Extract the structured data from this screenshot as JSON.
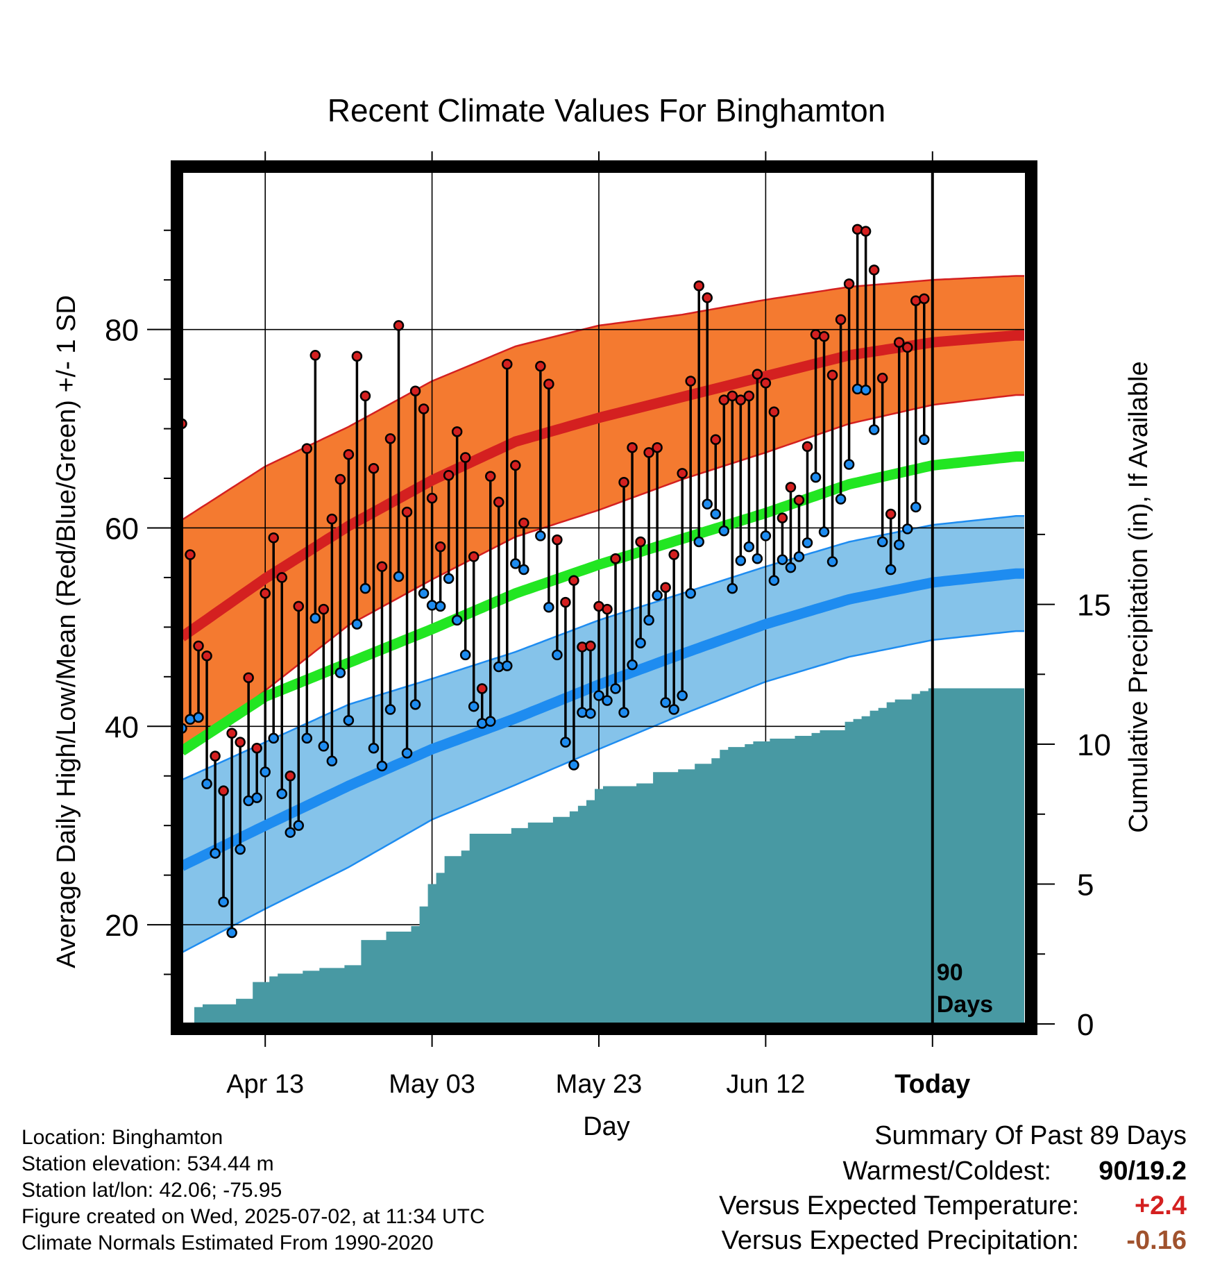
{
  "chart_data": {
    "type": "line",
    "title": "Recent Climate Values For Binghamton",
    "xlabel": "Day",
    "ylabel": "Average Daily High/Low/Mean (Red/Blue/Green) +/- 1 SD",
    "y2label": "Cumulative Precipitation (in), If Available",
    "ylim": [
      10,
      96
    ],
    "y2lim": [
      0,
      30.5
    ],
    "xlim": [
      1,
      102
    ],
    "yticks": [
      20,
      40,
      60,
      80
    ],
    "y2ticks": [
      0,
      5,
      10,
      15
    ],
    "xticks": [
      {
        "day": 11,
        "label": "Apr 13"
      },
      {
        "day": 31,
        "label": "May 03"
      },
      {
        "day": 51,
        "label": "May 23"
      },
      {
        "day": 71,
        "label": "Jun 12"
      },
      {
        "day": 91,
        "label": "Today"
      }
    ],
    "today_marker": {
      "day": 91,
      "label_lines": [
        "90",
        "Days"
      ]
    },
    "grid": true,
    "colors": {
      "high": "#d42020",
      "high_band": "#f47a30",
      "low": "#1e8cf0",
      "low_band": "#85c3ea",
      "mean": "#22e622",
      "precip": "#4899a3"
    },
    "normals": {
      "days": [
        1,
        11,
        21,
        31,
        41,
        51,
        61,
        71,
        81,
        91,
        101
      ],
      "high_mean": [
        49.0,
        54.9,
        60.2,
        64.8,
        68.7,
        71.1,
        73.2,
        75.3,
        77.4,
        78.7,
        79.4
      ],
      "high_sd": [
        11.8,
        11.3,
        10.0,
        10.0,
        9.6,
        9.3,
        8.3,
        7.7,
        6.9,
        6.3,
        6.0
      ],
      "mean_mean": [
        37.5,
        43.0,
        46.4,
        49.8,
        53.4,
        56.3,
        58.9,
        61.5,
        64.4,
        66.3,
        67.2
      ],
      "low_mean": [
        25.9,
        30.0,
        34.0,
        37.7,
        40.8,
        44.2,
        47.3,
        50.3,
        52.8,
        54.5,
        55.4
      ],
      "low_sd": [
        8.7,
        8.4,
        8.2,
        7.1,
        6.7,
        6.5,
        6.1,
        5.8,
        5.8,
        5.8,
        5.8
      ]
    },
    "series": [
      {
        "name": "High",
        "values": [
          70.5,
          57.3,
          48.1,
          47.1,
          37.0,
          33.5,
          39.3,
          38.4,
          44.9,
          37.8,
          53.4,
          59.0,
          55.0,
          35.0,
          52.1,
          68.0,
          77.4,
          51.8,
          60.9,
          64.9,
          67.4,
          77.3,
          73.3,
          66.0,
          56.1,
          69.0,
          80.4,
          61.6,
          73.8,
          72.0,
          63.0,
          58.1,
          65.3,
          69.7,
          67.1,
          57.1,
          43.8,
          65.2,
          62.6,
          76.5,
          66.3,
          60.5,
          null,
          76.3,
          74.5,
          58.8,
          52.5,
          54.7,
          48.0,
          48.1,
          52.1,
          51.8,
          56.9,
          64.6,
          68.1,
          58.6,
          67.6,
          68.1,
          54.0,
          57.3,
          65.5,
          74.8,
          84.4,
          83.2,
          68.9,
          72.9,
          73.3,
          72.9,
          73.3,
          75.5,
          74.6,
          71.7,
          61.0,
          64.1,
          62.8,
          68.2,
          79.5,
          79.3,
          75.4,
          81.0,
          84.6,
          90.1,
          89.9,
          86.0,
          75.1,
          61.4,
          78.7,
          78.2,
          82.9,
          83.1
        ]
      },
      {
        "name": "Low",
        "values": [
          39.8,
          40.7,
          40.9,
          34.2,
          27.2,
          22.3,
          19.2,
          27.6,
          32.5,
          32.8,
          35.4,
          38.8,
          33.2,
          29.3,
          30.0,
          38.8,
          50.9,
          38.0,
          36.5,
          45.4,
          40.6,
          50.3,
          53.9,
          37.8,
          36.0,
          41.7,
          55.1,
          37.3,
          42.2,
          53.4,
          52.2,
          52.1,
          54.9,
          50.7,
          47.2,
          42.0,
          40.3,
          40.5,
          46.0,
          46.1,
          56.4,
          55.8,
          null,
          59.2,
          52.0,
          47.2,
          38.4,
          36.1,
          41.4,
          41.3,
          43.1,
          42.6,
          43.8,
          41.4,
          46.2,
          48.4,
          50.7,
          53.2,
          42.4,
          41.7,
          43.1,
          53.4,
          58.6,
          62.4,
          61.4,
          59.7,
          53.9,
          56.7,
          58.1,
          56.9,
          59.2,
          54.7,
          56.8,
          56.0,
          57.1,
          58.5,
          65.1,
          59.6,
          56.6,
          62.9,
          66.4,
          74.0,
          73.9,
          69.9,
          58.6,
          55.8,
          58.3,
          59.9,
          62.1,
          68.9
        ]
      },
      {
        "name": "Cumulative Precipitation",
        "x": [
          1,
          2,
          3,
          4,
          5,
          6,
          7,
          8,
          9,
          10,
          11,
          12,
          13,
          14,
          15,
          16,
          17,
          18,
          19,
          20,
          21,
          22,
          23,
          24,
          25,
          26,
          27,
          28,
          29,
          30,
          31,
          32,
          33,
          34,
          35,
          36,
          37,
          38,
          39,
          40,
          41,
          42,
          43,
          44,
          45,
          46,
          47,
          48,
          49,
          50,
          51,
          52,
          53,
          54,
          55,
          56,
          57,
          58,
          59,
          60,
          61,
          62,
          63,
          64,
          65,
          66,
          67,
          68,
          69,
          70,
          71,
          72,
          73,
          74,
          75,
          76,
          77,
          78,
          79,
          80,
          81,
          82,
          83,
          84,
          85,
          86,
          87,
          88,
          89,
          90,
          91,
          92,
          93,
          94,
          95,
          96,
          97,
          98,
          99,
          100,
          101,
          102
        ],
        "values": [
          0.0,
          0.0,
          0.6,
          0.7,
          0.7,
          0.7,
          0.7,
          0.9,
          0.9,
          1.5,
          1.5,
          1.7,
          1.8,
          1.8,
          1.8,
          1.9,
          1.9,
          2.0,
          2.0,
          2.0,
          2.1,
          2.1,
          3.0,
          3.0,
          3.0,
          3.3,
          3.3,
          3.3,
          3.5,
          4.2,
          5.0,
          5.4,
          6.0,
          6.0,
          6.2,
          6.8,
          6.8,
          6.8,
          6.8,
          6.8,
          7.0,
          7.0,
          7.2,
          7.2,
          7.2,
          7.4,
          7.4,
          7.6,
          7.8,
          8.0,
          8.4,
          8.5,
          8.5,
          8.5,
          8.5,
          8.6,
          8.6,
          9.0,
          9.0,
          9.0,
          9.1,
          9.1,
          9.3,
          9.3,
          9.5,
          9.8,
          9.9,
          9.9,
          10.0,
          10.1,
          10.1,
          10.2,
          10.2,
          10.2,
          10.3,
          10.3,
          10.4,
          10.5,
          10.5,
          10.5,
          10.8,
          10.9,
          11.0,
          11.2,
          11.3,
          11.5,
          11.6,
          11.6,
          11.8,
          11.9,
          12.0,
          12.0,
          12.0,
          12.0,
          12.0,
          12.0,
          12.0,
          12.0,
          12.0,
          12.0,
          12.0,
          12.0
        ]
      }
    ]
  },
  "info": {
    "location": "Location: Binghamton",
    "elevation": "Station elevation: 534.44 m",
    "latlon": "Station lat/lon: 42.06; -75.95",
    "created": "Figure created on Wed, 2025-07-02, at 11:34 UTC",
    "normals": "Climate Normals Estimated From 1990-2020"
  },
  "summary": {
    "title": "Summary Of Past 89 Days",
    "warmest_label": "Warmest/Coldest:",
    "warmest_value": "90/19.2",
    "temp_label": "Versus Expected Temperature:",
    "temp_value": "+2.4",
    "temp_color": "#d42020",
    "precip_label": "Versus Expected Precipitation:",
    "precip_value": "-0.16",
    "precip_color": "#a0522d"
  }
}
